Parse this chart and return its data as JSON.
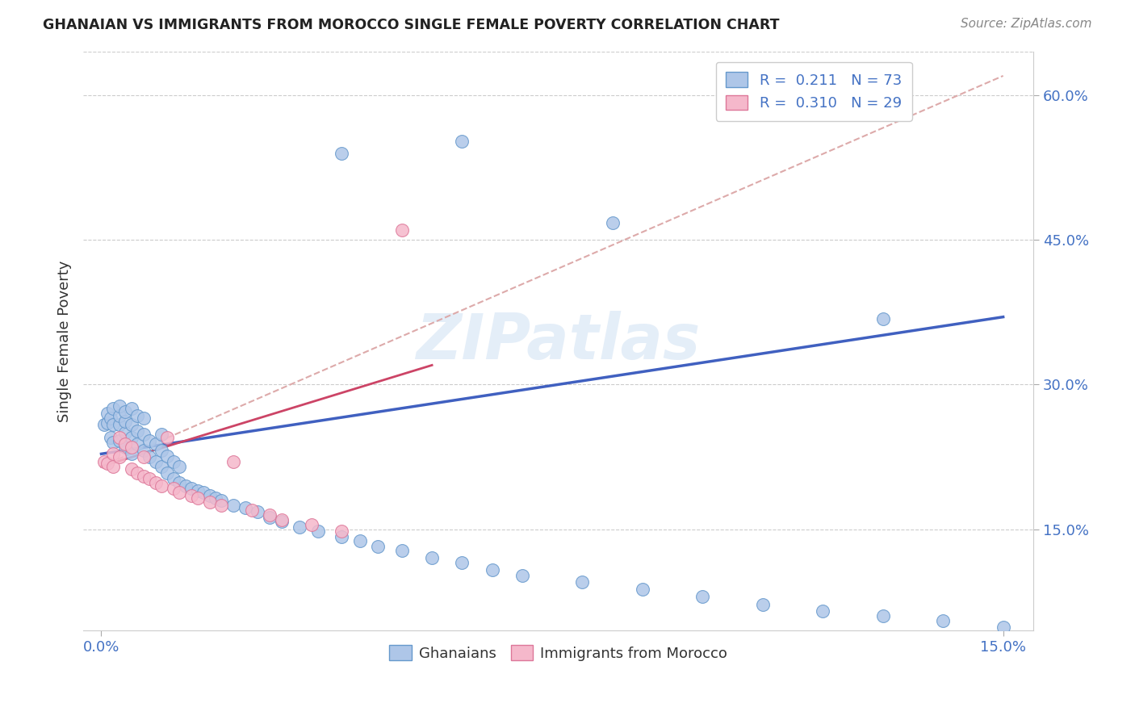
{
  "title": "GHANAIAN VS IMMIGRANTS FROM MOROCCO SINGLE FEMALE POVERTY CORRELATION CHART",
  "source": "Source: ZipAtlas.com",
  "ylabel": "Single Female Poverty",
  "watermark": "ZIPatlas",
  "color_ghanaian_fill": "#aec6e8",
  "color_ghanaian_edge": "#6699cc",
  "color_morocco_fill": "#f5b8cb",
  "color_morocco_edge": "#dd7799",
  "color_line_ghanaian": "#4060c0",
  "color_line_morocco": "#cc4466",
  "color_line_dashed": "#ddaaaa",
  "xlim": [
    -0.003,
    0.155
  ],
  "ylim": [
    0.045,
    0.645
  ],
  "xticks": [
    0.0,
    0.15
  ],
  "yticks": [
    0.15,
    0.3,
    0.45,
    0.6
  ],
  "xtick_labels": [
    "0.0%",
    "15.0%"
  ],
  "ytick_labels": [
    "15.0%",
    "30.0%",
    "45.0%",
    "60.0%"
  ],
  "gh_x": [
    0.0005,
    0.001,
    0.001,
    0.0015,
    0.0015,
    0.002,
    0.002,
    0.002,
    0.003,
    0.003,
    0.003,
    0.003,
    0.004,
    0.004,
    0.004,
    0.004,
    0.005,
    0.005,
    0.005,
    0.005,
    0.006,
    0.006,
    0.006,
    0.007,
    0.007,
    0.007,
    0.008,
    0.008,
    0.009,
    0.009,
    0.01,
    0.01,
    0.01,
    0.011,
    0.011,
    0.012,
    0.012,
    0.013,
    0.013,
    0.014,
    0.015,
    0.016,
    0.017,
    0.018,
    0.019,
    0.02,
    0.022,
    0.024,
    0.026,
    0.028,
    0.03,
    0.033,
    0.036,
    0.04,
    0.043,
    0.046,
    0.05,
    0.055,
    0.06,
    0.065,
    0.07,
    0.08,
    0.09,
    0.1,
    0.11,
    0.12,
    0.13,
    0.14,
    0.15,
    0.13,
    0.04,
    0.06,
    0.085
  ],
  "gh_y": [
    0.258,
    0.26,
    0.27,
    0.245,
    0.265,
    0.24,
    0.258,
    0.275,
    0.242,
    0.258,
    0.268,
    0.278,
    0.235,
    0.25,
    0.262,
    0.272,
    0.228,
    0.245,
    0.258,
    0.275,
    0.238,
    0.252,
    0.268,
    0.232,
    0.248,
    0.265,
    0.225,
    0.242,
    0.22,
    0.238,
    0.215,
    0.232,
    0.248,
    0.208,
    0.226,
    0.202,
    0.22,
    0.198,
    0.215,
    0.195,
    0.192,
    0.19,
    0.188,
    0.185,
    0.182,
    0.18,
    0.175,
    0.172,
    0.168,
    0.162,
    0.158,
    0.152,
    0.148,
    0.142,
    0.138,
    0.132,
    0.128,
    0.12,
    0.115,
    0.108,
    0.102,
    0.095,
    0.088,
    0.08,
    0.072,
    0.065,
    0.06,
    0.055,
    0.048,
    0.368,
    0.54,
    0.552,
    0.468
  ],
  "mo_x": [
    0.0005,
    0.001,
    0.002,
    0.002,
    0.003,
    0.003,
    0.004,
    0.005,
    0.005,
    0.006,
    0.007,
    0.007,
    0.008,
    0.009,
    0.01,
    0.011,
    0.012,
    0.013,
    0.015,
    0.016,
    0.018,
    0.02,
    0.022,
    0.025,
    0.028,
    0.03,
    0.035,
    0.04,
    0.05
  ],
  "mo_y": [
    0.22,
    0.218,
    0.215,
    0.228,
    0.225,
    0.245,
    0.238,
    0.212,
    0.235,
    0.208,
    0.205,
    0.225,
    0.202,
    0.198,
    0.195,
    0.245,
    0.192,
    0.188,
    0.185,
    0.182,
    0.178,
    0.175,
    0.22,
    0.17,
    0.165,
    0.16,
    0.155,
    0.148,
    0.46
  ],
  "blue_line_x0": 0.0,
  "blue_line_y0": 0.228,
  "blue_line_x1": 0.15,
  "blue_line_y1": 0.37,
  "pink_line_x0": 0.0,
  "pink_line_y0": 0.215,
  "pink_line_x1": 0.055,
  "pink_line_y1": 0.32,
  "dash_line_x0": 0.0,
  "dash_line_y0": 0.215,
  "dash_line_x1": 0.15,
  "dash_line_y1": 0.62
}
